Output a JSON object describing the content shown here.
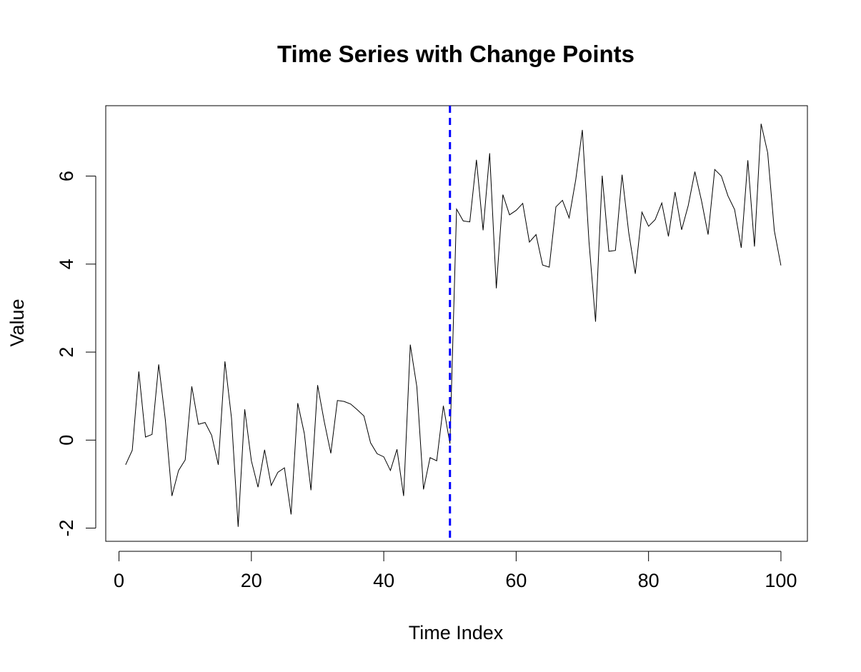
{
  "chart_data": {
    "type": "line",
    "title": "Time Series with Change Points",
    "xlabel": "Time Index",
    "ylabel": "Value",
    "xlim": [
      -2,
      104
    ],
    "ylim": [
      -2.3,
      7.6
    ],
    "xticks": [
      0,
      20,
      40,
      60,
      80,
      100
    ],
    "xtick_labels": [
      "0",
      "20",
      "40",
      "60",
      "80",
      "100"
    ],
    "yticks": [
      -2,
      0,
      2,
      4,
      6
    ],
    "ytick_labels": [
      "-2",
      "0",
      "2",
      "4",
      "6"
    ],
    "grid": false,
    "series": [
      {
        "color": "#000000",
        "x": [
          1,
          2,
          3,
          4,
          5,
          6,
          7,
          8,
          9,
          10,
          11,
          12,
          13,
          14,
          15,
          16,
          17,
          18,
          19,
          20,
          21,
          22,
          23,
          24,
          25,
          26,
          27,
          28,
          29,
          30,
          31,
          32,
          33,
          34,
          35,
          36,
          37,
          38,
          39,
          40,
          41,
          42,
          43,
          44,
          45,
          46,
          47,
          48,
          49,
          50,
          51,
          52,
          53,
          54,
          55,
          56,
          57,
          58,
          59,
          60,
          61,
          62,
          63,
          64,
          65,
          66,
          67,
          68,
          69,
          70,
          71,
          72,
          73,
          74,
          75,
          76,
          77,
          78,
          79,
          80,
          81,
          82,
          83,
          84,
          85,
          86,
          87,
          88,
          89,
          90,
          91,
          92,
          93,
          94,
          95,
          96,
          97,
          98,
          99,
          100
        ],
        "values": [
          -0.56,
          -0.23,
          1.56,
          0.07,
          0.13,
          1.72,
          0.46,
          -1.27,
          -0.69,
          -0.45,
          1.22,
          0.36,
          0.4,
          0.11,
          -0.56,
          1.79,
          0.5,
          -1.97,
          0.7,
          -0.47,
          -1.07,
          -0.22,
          -1.03,
          -0.73,
          -0.63,
          -1.69,
          0.84,
          0.15,
          -1.14,
          1.25,
          0.43,
          -0.3,
          0.9,
          0.88,
          0.82,
          0.69,
          0.55,
          -0.06,
          -0.31,
          -0.38,
          -0.69,
          -0.21,
          -1.27,
          2.17,
          1.21,
          -1.12,
          -0.4,
          -0.47,
          0.78,
          -0.08,
          5.25,
          4.98,
          4.96,
          6.37,
          4.77,
          6.52,
          3.45,
          5.58,
          5.12,
          5.22,
          5.38,
          4.5,
          4.67,
          3.98,
          3.93,
          5.3,
          5.45,
          5.05,
          5.92,
          7.05,
          4.51,
          2.69,
          6.01,
          4.29,
          4.31,
          6.03,
          4.72,
          3.78,
          5.18,
          4.86,
          5.01,
          5.39,
          4.63,
          5.64,
          4.78,
          5.33,
          6.1,
          5.44,
          4.67,
          6.15,
          6.0,
          5.55,
          5.24,
          4.37,
          6.36,
          4.4,
          7.19,
          6.53,
          4.76,
          3.97
        ]
      }
    ],
    "change_points": [
      {
        "x": 50,
        "color": "#0000ff",
        "style": "dashed"
      }
    ]
  }
}
